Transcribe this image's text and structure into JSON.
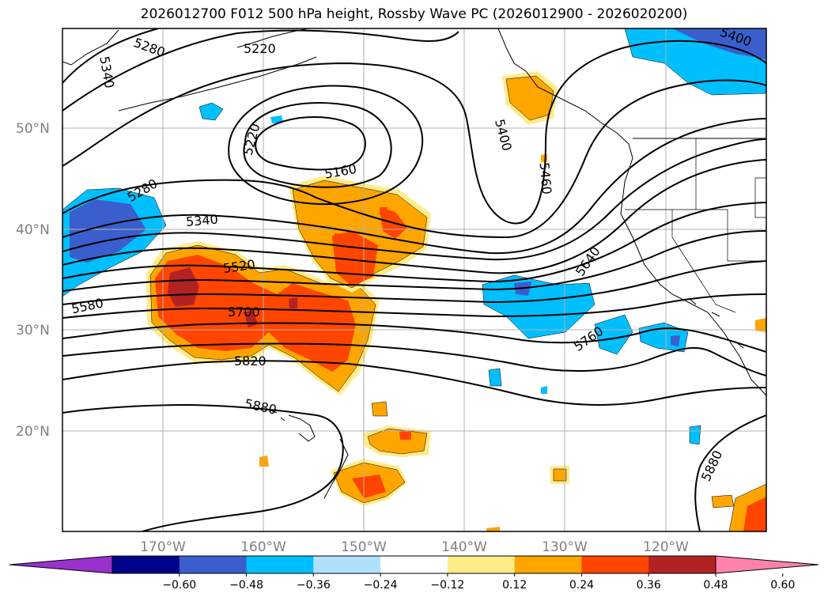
{
  "title": "2026012700 F012 500 hPa height, Rossby Wave PC (2026012900 - 2026020200)",
  "lat_labels": [
    "50°N",
    "40°N",
    "30°N",
    "20°N"
  ],
  "lon_labels": [
    "170°W",
    "160°W",
    "150°W",
    "140°W",
    "130°W",
    "120°W"
  ],
  "contour_labels": [
    "5340",
    "5280",
    "5220",
    "5220",
    "5160",
    "5280",
    "5340",
    "5520",
    "5580",
    "5700",
    "5820",
    "5880",
    "5400",
    "5400",
    "5460",
    "5640",
    "5760",
    "5880"
  ],
  "colorbar": {
    "tick_labels": [
      "−0.60",
      "−0.48",
      "−0.36",
      "−0.24",
      "−0.12",
      "0.12",
      "0.24",
      "0.36",
      "0.48",
      "0.60"
    ],
    "colors": [
      "#9932cc",
      "#00008b",
      "#3a5fcd",
      "#00bfff",
      "#b0e2ff",
      "#ffffff",
      "#ffec8b",
      "#ffa500",
      "#ff4500",
      "#b22222",
      "#ff82ab"
    ]
  }
}
